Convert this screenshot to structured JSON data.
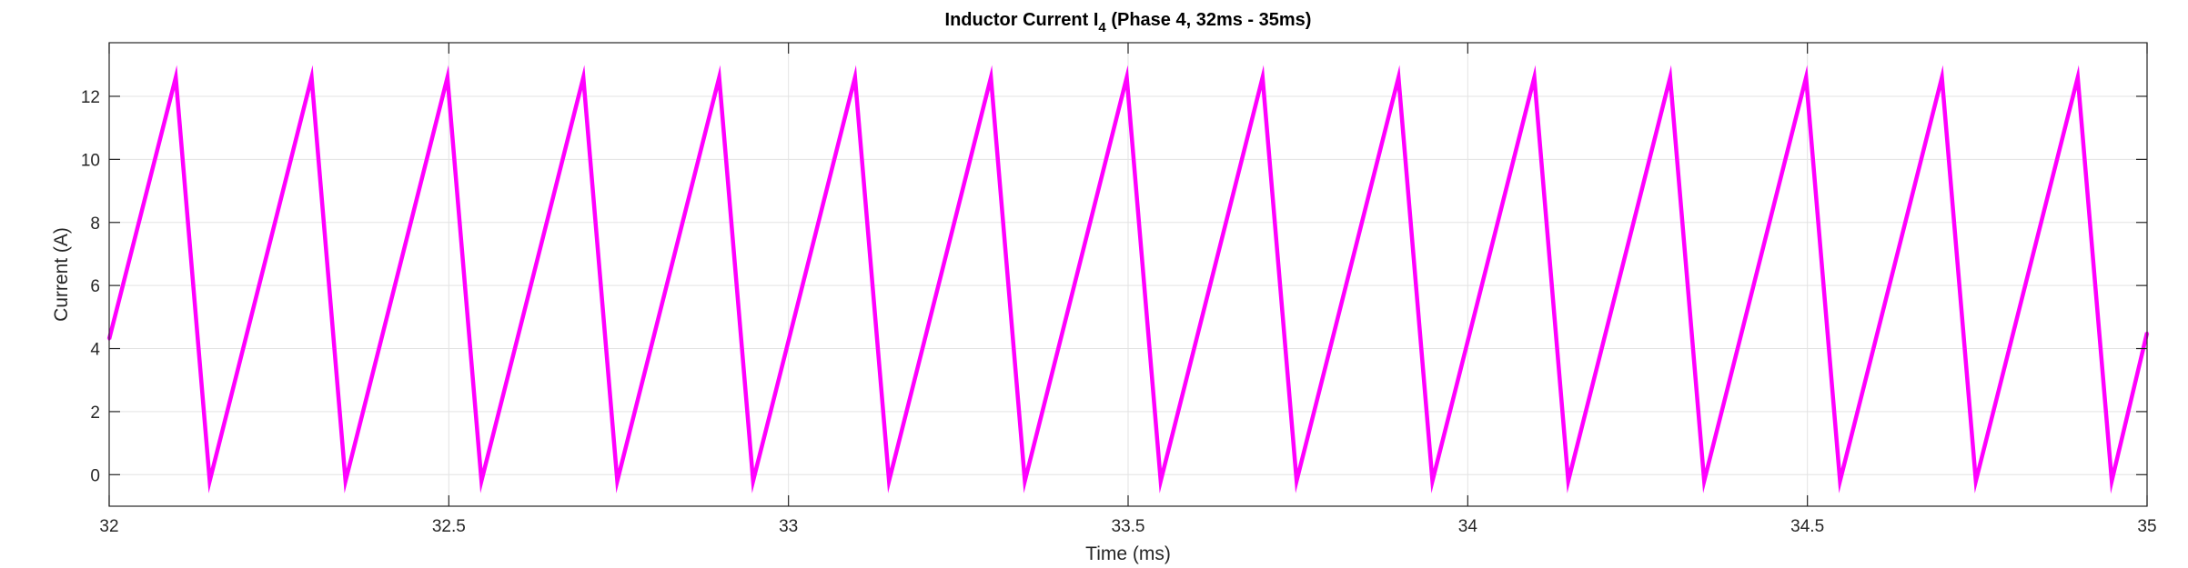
{
  "chart_data": {
    "type": "line",
    "title": "Inductor Current I",
    "title_subscript": "4",
    "title_suffix": " (Phase 4, 32ms - 35ms)",
    "xlabel": "Time (ms)",
    "ylabel": "Current (A)",
    "xlim": [
      32,
      35
    ],
    "ylim": [
      -1,
      13.7
    ],
    "xticks": [
      32,
      32.5,
      33,
      33.5,
      34,
      34.5,
      35
    ],
    "xtick_labels": [
      "32",
      "32.5",
      "33",
      "33.5",
      "34",
      "34.5",
      "35"
    ],
    "yticks": [
      0,
      2,
      4,
      6,
      8,
      10,
      12
    ],
    "ytick_labels": [
      "0",
      "2",
      "4",
      "6",
      "8",
      "10",
      "12"
    ],
    "grid": true,
    "series": [
      {
        "color": "#ff00ff",
        "x": [
          32.0,
          32.098,
          32.148,
          32.298,
          32.348,
          32.498,
          32.548,
          32.698,
          32.748,
          32.898,
          32.948,
          33.098,
          33.148,
          33.298,
          33.348,
          33.498,
          33.548,
          33.698,
          33.748,
          33.898,
          33.948,
          34.098,
          34.148,
          34.298,
          34.348,
          34.498,
          34.548,
          34.698,
          34.748,
          34.898,
          34.948,
          35.0
        ],
        "y": [
          4.3,
          12.6,
          -0.2,
          12.6,
          -0.2,
          12.6,
          -0.2,
          12.6,
          -0.2,
          12.6,
          -0.2,
          12.6,
          -0.2,
          12.6,
          -0.2,
          12.6,
          -0.2,
          12.6,
          -0.2,
          12.6,
          -0.2,
          12.6,
          -0.2,
          12.6,
          -0.2,
          12.6,
          -0.2,
          12.6,
          -0.2,
          12.6,
          -0.2,
          4.5
        ]
      }
    ]
  }
}
